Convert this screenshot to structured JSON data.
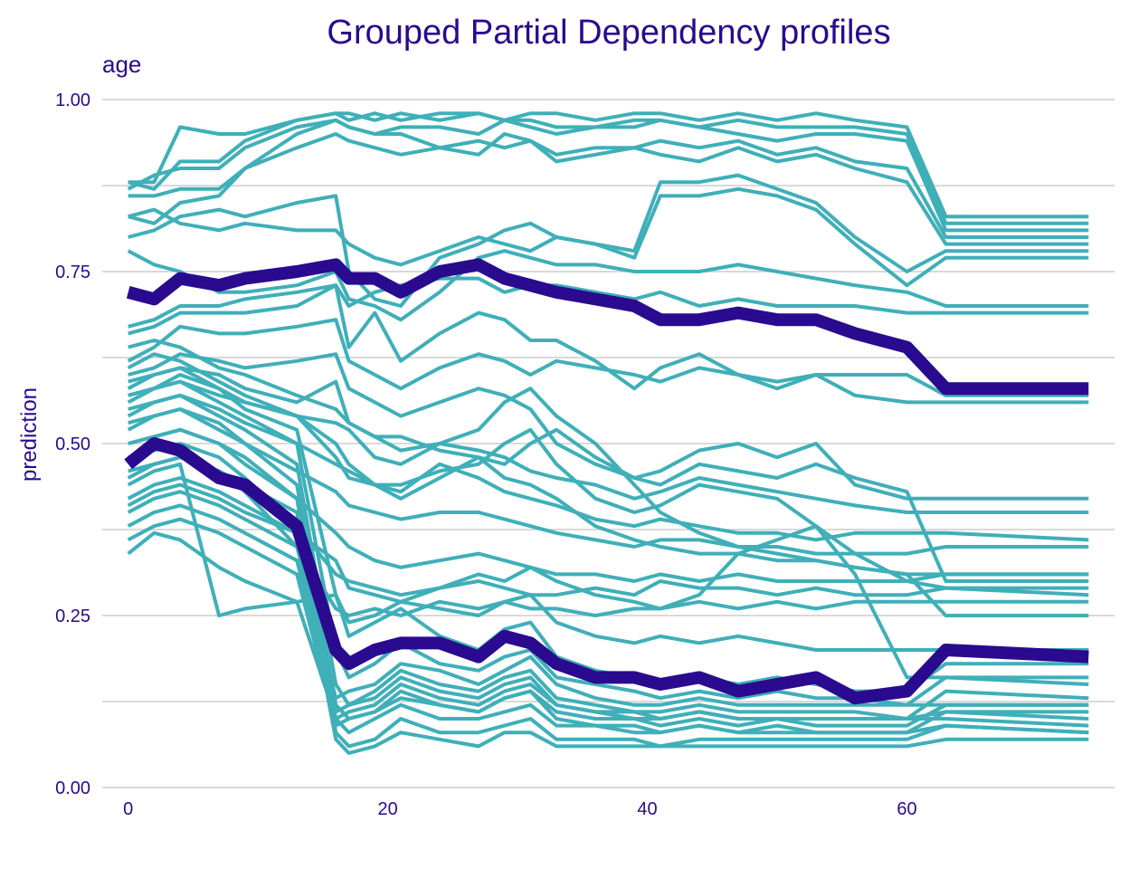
{
  "chart_data": {
    "type": "line",
    "title": "Grouped Partial Dependency profiles",
    "subtitle": "age",
    "xlabel": "",
    "ylabel": "prediction",
    "xlim": [
      -2,
      76
    ],
    "ylim": [
      0,
      1
    ],
    "x_ticks": [
      "0",
      "20",
      "40",
      "60"
    ],
    "y_ticks": [
      "0.00",
      "0.25",
      "0.50",
      "0.75",
      "1.00"
    ],
    "grid": true,
    "legend": "none",
    "colors": {
      "individual": "#3fafb8",
      "aggregate": "#2a0a8f",
      "text": "#2a0a8f",
      "grid": "#d9d9d9"
    },
    "x": [
      0,
      2,
      4,
      7,
      9,
      13,
      16,
      17,
      19,
      21,
      24,
      27,
      29,
      31,
      33,
      36,
      39,
      41,
      44,
      47,
      50,
      53,
      56,
      60,
      63,
      74
    ],
    "series": [
      {
        "group": "aggregate",
        "values": [
          0.72,
          0.71,
          0.74,
          0.73,
          0.74,
          0.75,
          0.76,
          0.74,
          0.74,
          0.72,
          0.75,
          0.76,
          0.74,
          0.73,
          0.72,
          0.71,
          0.7,
          0.68,
          0.68,
          0.69,
          0.68,
          0.68,
          0.66,
          0.64,
          0.58,
          0.58
        ]
      },
      {
        "group": "aggregate",
        "values": [
          0.47,
          0.5,
          0.49,
          0.45,
          0.44,
          0.38,
          0.2,
          0.18,
          0.2,
          0.21,
          0.21,
          0.19,
          0.22,
          0.21,
          0.18,
          0.16,
          0.16,
          0.15,
          0.16,
          0.14,
          0.15,
          0.16,
          0.13,
          0.14,
          0.2,
          0.19
        ]
      },
      {
        "group": "individual",
        "values": [
          0.88,
          0.88,
          0.96,
          0.95,
          0.95,
          0.97,
          0.98,
          0.97,
          0.98,
          0.97,
          0.98,
          0.98,
          0.97,
          0.98,
          0.98,
          0.97,
          0.98,
          0.98,
          0.97,
          0.98,
          0.97,
          0.98,
          0.97,
          0.96,
          0.83,
          0.83
        ]
      },
      {
        "group": "individual",
        "values": [
          0.87,
          0.89,
          0.9,
          0.9,
          0.93,
          0.96,
          0.97,
          0.96,
          0.95,
          0.96,
          0.96,
          0.95,
          0.97,
          0.97,
          0.96,
          0.96,
          0.97,
          0.97,
          0.96,
          0.97,
          0.96,
          0.96,
          0.96,
          0.95,
          0.82,
          0.82
        ]
      },
      {
        "group": "individual",
        "values": [
          0.88,
          0.87,
          0.91,
          0.91,
          0.94,
          0.97,
          0.98,
          0.98,
          0.97,
          0.98,
          0.97,
          0.98,
          0.97,
          0.96,
          0.95,
          0.96,
          0.96,
          0.97,
          0.96,
          0.95,
          0.94,
          0.95,
          0.95,
          0.94,
          0.81,
          0.81
        ]
      },
      {
        "group": "individual",
        "values": [
          0.86,
          0.86,
          0.87,
          0.87,
          0.9,
          0.95,
          0.97,
          0.96,
          0.95,
          0.95,
          0.93,
          0.92,
          0.95,
          0.94,
          0.92,
          0.93,
          0.93,
          0.94,
          0.93,
          0.94,
          0.92,
          0.93,
          0.91,
          0.9,
          0.8,
          0.8
        ]
      },
      {
        "group": "individual",
        "values": [
          0.83,
          0.82,
          0.85,
          0.86,
          0.9,
          0.93,
          0.95,
          0.94,
          0.93,
          0.92,
          0.93,
          0.94,
          0.93,
          0.94,
          0.91,
          0.92,
          0.93,
          0.92,
          0.91,
          0.93,
          0.91,
          0.92,
          0.9,
          0.88,
          0.79,
          0.79
        ]
      },
      {
        "group": "individual",
        "values": [
          0.8,
          0.81,
          0.83,
          0.84,
          0.83,
          0.85,
          0.86,
          0.75,
          0.71,
          0.7,
          0.77,
          0.79,
          0.81,
          0.82,
          0.8,
          0.79,
          0.78,
          0.88,
          0.88,
          0.89,
          0.87,
          0.85,
          0.8,
          0.75,
          0.78,
          0.78
        ]
      },
      {
        "group": "individual",
        "values": [
          0.83,
          0.84,
          0.82,
          0.81,
          0.82,
          0.81,
          0.81,
          0.79,
          0.77,
          0.76,
          0.78,
          0.8,
          0.79,
          0.78,
          0.8,
          0.79,
          0.77,
          0.86,
          0.86,
          0.87,
          0.86,
          0.84,
          0.79,
          0.73,
          0.77,
          0.77
        ]
      },
      {
        "group": "individual",
        "values": [
          0.78,
          0.76,
          0.75,
          0.72,
          0.72,
          0.73,
          0.75,
          0.71,
          0.7,
          0.68,
          0.72,
          0.77,
          0.78,
          0.77,
          0.76,
          0.76,
          0.75,
          0.75,
          0.75,
          0.76,
          0.75,
          0.74,
          0.73,
          0.72,
          0.7,
          0.7
        ]
      },
      {
        "group": "individual",
        "values": [
          0.67,
          0.68,
          0.7,
          0.7,
          0.71,
          0.72,
          0.73,
          0.7,
          0.72,
          0.73,
          0.74,
          0.74,
          0.72,
          0.73,
          0.73,
          0.72,
          0.71,
          0.72,
          0.7,
          0.71,
          0.7,
          0.7,
          0.7,
          0.69,
          0.69,
          0.69
        ]
      },
      {
        "group": "individual",
        "values": [
          0.66,
          0.67,
          0.69,
          0.69,
          0.69,
          0.7,
          0.73,
          0.64,
          0.69,
          0.62,
          0.66,
          0.69,
          0.68,
          0.65,
          0.65,
          0.62,
          0.58,
          0.61,
          0.63,
          0.6,
          0.59,
          0.6,
          0.6,
          0.6,
          0.57,
          0.57
        ]
      },
      {
        "group": "individual",
        "values": [
          0.62,
          0.64,
          0.67,
          0.66,
          0.66,
          0.67,
          0.68,
          0.62,
          0.6,
          0.58,
          0.61,
          0.63,
          0.62,
          0.6,
          0.62,
          0.61,
          0.6,
          0.59,
          0.61,
          0.6,
          0.58,
          0.6,
          0.57,
          0.56,
          0.56,
          0.56
        ]
      },
      {
        "group": "individual",
        "values": [
          0.6,
          0.61,
          0.63,
          0.62,
          0.61,
          0.62,
          0.63,
          0.58,
          0.56,
          0.54,
          0.56,
          0.58,
          0.57,
          0.55,
          0.5,
          0.47,
          0.45,
          0.46,
          0.49,
          0.5,
          0.48,
          0.5,
          0.44,
          0.42,
          0.42,
          0.42
        ]
      },
      {
        "group": "individual",
        "values": [
          0.57,
          0.58,
          0.59,
          0.57,
          0.56,
          0.54,
          0.53,
          0.52,
          0.48,
          0.47,
          0.5,
          0.49,
          0.48,
          0.46,
          0.45,
          0.44,
          0.42,
          0.43,
          0.45,
          0.44,
          0.43,
          0.42,
          0.41,
          0.4,
          0.4,
          0.4
        ]
      },
      {
        "group": "individual",
        "values": [
          0.55,
          0.56,
          0.57,
          0.55,
          0.53,
          0.5,
          0.47,
          0.46,
          0.44,
          0.43,
          0.47,
          0.45,
          0.43,
          0.42,
          0.41,
          0.39,
          0.38,
          0.39,
          0.38,
          0.37,
          0.37,
          0.36,
          0.37,
          0.37,
          0.37,
          0.36
        ]
      },
      {
        "group": "individual",
        "values": [
          0.53,
          0.54,
          0.55,
          0.53,
          0.5,
          0.46,
          0.43,
          0.41,
          0.4,
          0.39,
          0.4,
          0.4,
          0.39,
          0.38,
          0.37,
          0.36,
          0.35,
          0.36,
          0.36,
          0.35,
          0.35,
          0.34,
          0.34,
          0.34,
          0.35,
          0.35
        ]
      },
      {
        "group": "individual",
        "values": [
          0.5,
          0.51,
          0.52,
          0.5,
          0.48,
          0.42,
          0.37,
          0.35,
          0.33,
          0.32,
          0.33,
          0.34,
          0.33,
          0.32,
          0.31,
          0.31,
          0.3,
          0.31,
          0.3,
          0.31,
          0.3,
          0.3,
          0.3,
          0.3,
          0.31,
          0.31
        ]
      },
      {
        "group": "individual",
        "values": [
          0.48,
          0.49,
          0.5,
          0.48,
          0.45,
          0.38,
          0.31,
          0.3,
          0.29,
          0.28,
          0.29,
          0.3,
          0.29,
          0.28,
          0.28,
          0.29,
          0.28,
          0.3,
          0.29,
          0.29,
          0.28,
          0.29,
          0.28,
          0.28,
          0.29,
          0.29
        ]
      },
      {
        "group": "individual",
        "values": [
          0.46,
          0.47,
          0.48,
          0.46,
          0.43,
          0.35,
          0.26,
          0.25,
          0.26,
          0.25,
          0.27,
          0.26,
          0.27,
          0.26,
          0.26,
          0.25,
          0.26,
          0.26,
          0.27,
          0.26,
          0.27,
          0.26,
          0.27,
          0.27,
          0.27,
          0.27
        ]
      },
      {
        "group": "individual",
        "values": [
          0.58,
          0.6,
          0.61,
          0.58,
          0.55,
          0.52,
          0.28,
          0.22,
          0.24,
          0.26,
          0.22,
          0.2,
          0.23,
          0.24,
          0.19,
          0.17,
          0.16,
          0.15,
          0.16,
          0.15,
          0.16,
          0.15,
          0.14,
          0.14,
          0.18,
          0.18
        ]
      },
      {
        "group": "individual",
        "values": [
          0.56,
          0.58,
          0.59,
          0.56,
          0.54,
          0.5,
          0.2,
          0.16,
          0.18,
          0.21,
          0.18,
          0.17,
          0.19,
          0.2,
          0.16,
          0.15,
          0.14,
          0.13,
          0.14,
          0.13,
          0.14,
          0.13,
          0.13,
          0.12,
          0.16,
          0.16
        ]
      },
      {
        "group": "individual",
        "values": [
          0.54,
          0.56,
          0.57,
          0.54,
          0.52,
          0.47,
          0.15,
          0.12,
          0.14,
          0.17,
          0.15,
          0.14,
          0.16,
          0.17,
          0.13,
          0.12,
          0.11,
          0.11,
          0.12,
          0.11,
          0.11,
          0.11,
          0.11,
          0.1,
          0.14,
          0.13
        ]
      },
      {
        "group": "individual",
        "values": [
          0.52,
          0.54,
          0.55,
          0.52,
          0.5,
          0.44,
          0.12,
          0.1,
          0.11,
          0.14,
          0.12,
          0.11,
          0.13,
          0.14,
          0.11,
          0.1,
          0.1,
          0.09,
          0.1,
          0.09,
          0.1,
          0.09,
          0.09,
          0.09,
          0.12,
          0.12
        ]
      },
      {
        "group": "individual",
        "values": [
          0.5,
          0.51,
          0.52,
          0.5,
          0.47,
          0.42,
          0.1,
          0.08,
          0.1,
          0.12,
          0.1,
          0.1,
          0.11,
          0.12,
          0.09,
          0.09,
          0.08,
          0.08,
          0.09,
          0.08,
          0.08,
          0.08,
          0.08,
          0.08,
          0.11,
          0.1
        ]
      },
      {
        "group": "individual",
        "values": [
          0.45,
          0.47,
          0.48,
          0.46,
          0.44,
          0.4,
          0.08,
          0.06,
          0.07,
          0.1,
          0.08,
          0.08,
          0.09,
          0.1,
          0.07,
          0.07,
          0.07,
          0.06,
          0.07,
          0.07,
          0.07,
          0.07,
          0.07,
          0.07,
          0.09,
          0.08
        ]
      },
      {
        "group": "individual",
        "values": [
          0.42,
          0.44,
          0.45,
          0.43,
          0.41,
          0.37,
          0.07,
          0.05,
          0.06,
          0.08,
          0.07,
          0.06,
          0.08,
          0.08,
          0.06,
          0.06,
          0.06,
          0.06,
          0.06,
          0.06,
          0.06,
          0.06,
          0.06,
          0.06,
          0.07,
          0.07
        ]
      },
      {
        "group": "individual",
        "values": [
          0.4,
          0.42,
          0.43,
          0.41,
          0.39,
          0.35,
          0.13,
          0.14,
          0.15,
          0.18,
          0.17,
          0.15,
          0.17,
          0.19,
          0.15,
          0.13,
          0.12,
          0.12,
          0.13,
          0.12,
          0.12,
          0.12,
          0.12,
          0.12,
          0.12,
          0.12
        ]
      },
      {
        "group": "individual",
        "values": [
          0.38,
          0.4,
          0.41,
          0.39,
          0.37,
          0.33,
          0.11,
          0.12,
          0.13,
          0.16,
          0.14,
          0.13,
          0.15,
          0.16,
          0.12,
          0.11,
          0.1,
          0.1,
          0.11,
          0.1,
          0.1,
          0.1,
          0.1,
          0.1,
          0.1,
          0.09
        ]
      },
      {
        "group": "individual",
        "values": [
          0.36,
          0.38,
          0.39,
          0.37,
          0.35,
          0.31,
          0.09,
          0.1,
          0.11,
          0.13,
          0.12,
          0.11,
          0.13,
          0.14,
          0.1,
          0.09,
          0.09,
          0.08,
          0.09,
          0.08,
          0.09,
          0.08,
          0.08,
          0.08,
          0.09,
          0.08
        ]
      },
      {
        "group": "individual",
        "values": [
          0.34,
          0.37,
          0.36,
          0.32,
          0.3,
          0.27,
          0.1,
          0.11,
          0.12,
          0.15,
          0.13,
          0.12,
          0.14,
          0.15,
          0.12,
          0.11,
          0.11,
          0.1,
          0.11,
          0.1,
          0.1,
          0.1,
          0.1,
          0.1,
          0.11,
          0.11
        ]
      },
      {
        "group": "individual",
        "values": [
          0.44,
          0.46,
          0.47,
          0.25,
          0.26,
          0.27,
          0.28,
          0.24,
          0.25,
          0.27,
          0.26,
          0.25,
          0.27,
          0.28,
          0.24,
          0.22,
          0.21,
          0.22,
          0.21,
          0.22,
          0.21,
          0.2,
          0.2,
          0.2,
          0.2,
          0.2
        ]
      },
      {
        "group": "individual",
        "values": [
          0.61,
          0.63,
          0.62,
          0.59,
          0.57,
          0.54,
          0.5,
          0.47,
          0.44,
          0.42,
          0.45,
          0.48,
          0.47,
          0.5,
          0.52,
          0.48,
          0.45,
          0.44,
          0.47,
          0.46,
          0.45,
          0.47,
          0.45,
          0.43,
          0.3,
          0.3
        ]
      },
      {
        "group": "individual",
        "values": [
          0.64,
          0.65,
          0.64,
          0.61,
          0.6,
          0.57,
          0.55,
          0.53,
          0.51,
          0.49,
          0.5,
          0.52,
          0.56,
          0.58,
          0.54,
          0.5,
          0.44,
          0.4,
          0.37,
          0.35,
          0.34,
          0.33,
          0.32,
          0.31,
          0.31,
          0.31
        ]
      },
      {
        "group": "individual",
        "values": [
          0.59,
          0.6,
          0.61,
          0.6,
          0.58,
          0.56,
          0.59,
          0.53,
          0.51,
          0.51,
          0.49,
          0.48,
          0.45,
          0.44,
          0.42,
          0.38,
          0.36,
          0.35,
          0.34,
          0.34,
          0.33,
          0.33,
          0.32,
          0.31,
          0.25,
          0.25
        ]
      },
      {
        "group": "individual",
        "values": [
          0.57,
          0.58,
          0.6,
          0.58,
          0.56,
          0.54,
          0.48,
          0.45,
          0.44,
          0.44,
          0.46,
          0.47,
          0.5,
          0.52,
          0.47,
          0.42,
          0.4,
          0.41,
          0.44,
          0.43,
          0.42,
          0.38,
          0.31,
          0.16,
          0.16,
          0.15
        ]
      },
      {
        "group": "individual",
        "values": [
          0.41,
          0.43,
          0.44,
          0.42,
          0.4,
          0.37,
          0.33,
          0.29,
          0.28,
          0.27,
          0.29,
          0.31,
          0.3,
          0.32,
          0.3,
          0.28,
          0.27,
          0.26,
          0.28,
          0.34,
          0.36,
          0.38,
          0.34,
          0.3,
          0.29,
          0.28
        ]
      }
    ]
  }
}
